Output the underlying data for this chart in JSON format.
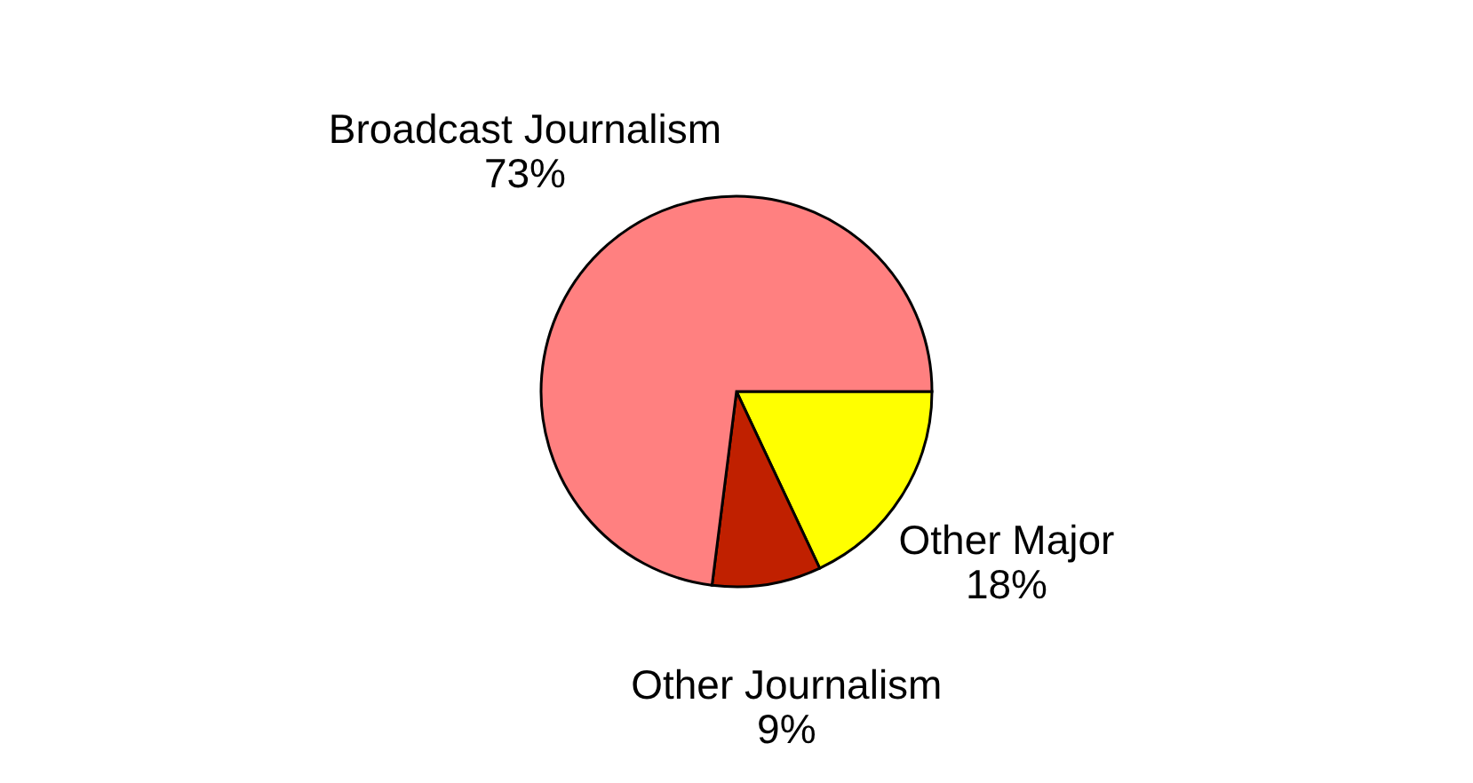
{
  "chart_data": {
    "type": "pie",
    "categories": [
      "Other Major",
      "Other Journalism",
      "Broadcast Journalism"
    ],
    "values": [
      18,
      9,
      73
    ],
    "value_labels": [
      "18%",
      "9%",
      "73%"
    ],
    "colors": [
      "#ffff00",
      "#c02000",
      "#ff8080"
    ],
    "legend": false
  }
}
